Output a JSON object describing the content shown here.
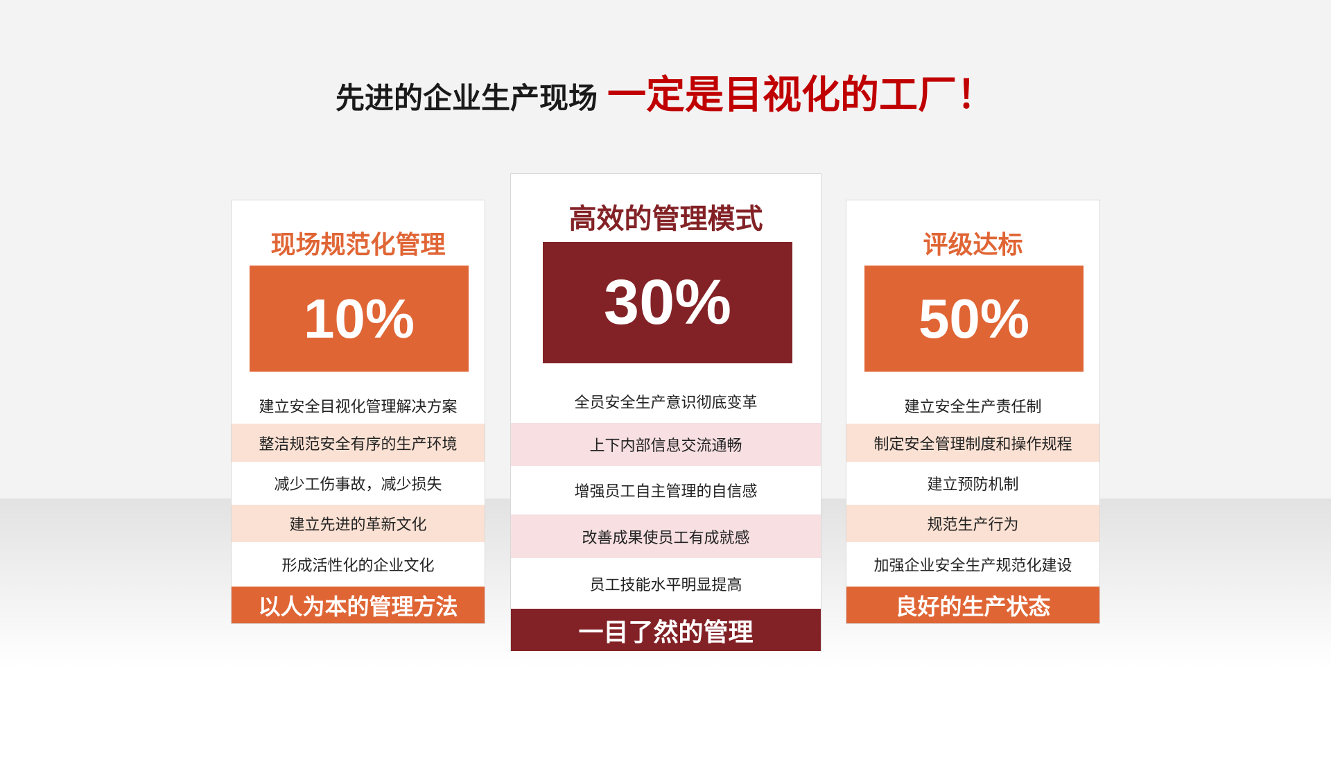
{
  "title": {
    "lead": "先进的企业生产现场",
    "highlight": "一定是目视化的工厂！"
  },
  "colors": {
    "orange": "#e06535",
    "dark_red": "#832226",
    "peach": "#fbe1d3",
    "pink": "#f7dfe2",
    "title_red": "#c00000"
  },
  "cards": [
    {
      "heading": "现场规范化管理",
      "percent": "10%",
      "items": [
        "建立安全目视化管理解决方案",
        "整洁规范安全有序的生产环境",
        "减少工伤事故，减少损失",
        "建立先进的革新文化",
        "形成活性化的企业文化"
      ],
      "footer": "以人为本的管理方法"
    },
    {
      "heading": "高效的管理模式",
      "percent": "30%",
      "items": [
        "全员安全生产意识彻底变革",
        "上下内部信息交流通畅",
        "增强员工自主管理的自信感",
        "改善成果使员工有成就感",
        "员工技能水平明显提高"
      ],
      "footer": "一目了然的管理"
    },
    {
      "heading": "评级达标",
      "percent": "50%",
      "items": [
        "建立安全生产责任制",
        "制定安全管理制度和操作规程",
        "建立预防机制",
        "规范生产行为",
        "加强企业安全生产规范化建设"
      ],
      "footer": "良好的生产状态"
    }
  ]
}
